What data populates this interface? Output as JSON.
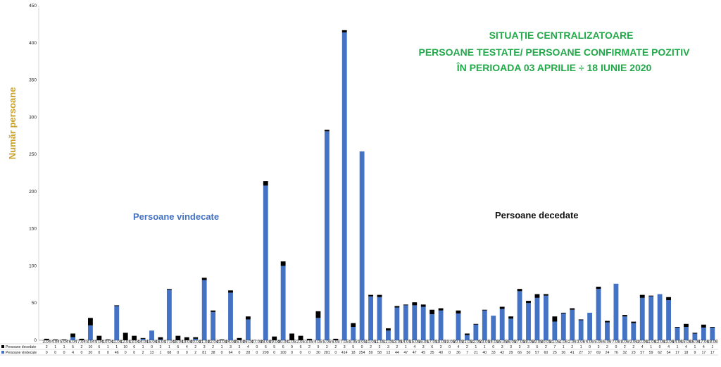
{
  "chart_data": {
    "type": "bar",
    "stacked": true,
    "title": [
      "SITUAȚIE CENTRALIZATOARE",
      "PERSOANE TESTATE/ PERSOANE CONFIRMATE POZITIV",
      "ÎN PERIOADA 03 APRILIE ÷ 18 IUNIE 2020"
    ],
    "ylabel": "Număr persoane",
    "xlabel": "",
    "ylim": [
      0,
      450
    ],
    "yticks": [
      "0",
      "50",
      "100",
      "150",
      "200",
      "250",
      "300",
      "350",
      "400",
      "450"
    ],
    "grid": false,
    "annotations": [
      {
        "text": "Persoane vindecate",
        "color": "#4472C4"
      },
      {
        "text": "Persoane decedate",
        "color": "#111111"
      }
    ],
    "colors": {
      "vindecate": "#4472C4",
      "decedate": "#000000"
    },
    "legend_table": {
      "row_labels": [
        "Persoane decedate",
        "Persoane vindecate"
      ]
    },
    "categories": [
      "3.04",
      "4.04",
      "5.04",
      "6.04",
      "7.04",
      "8.04",
      "9.04",
      "10.04",
      "11.04",
      "12.04",
      "13.04",
      "14.04",
      "15.04",
      "16.04",
      "17.04",
      "18.04",
      "19.04",
      "20.04",
      "21.04",
      "22.04",
      "23.04",
      "24.04",
      "25.04",
      "26.04",
      "27.04",
      "28.04",
      "29.04",
      "30.04",
      "1.05",
      "2.05",
      "3.05",
      "4.05",
      "5.05",
      "6.05",
      "7.05",
      "8.05",
      "9.05",
      "10.05",
      "11.05",
      "12.05",
      "13.05",
      "14.05",
      "15.05",
      "16.05",
      "17.05",
      "18.05",
      "19.05",
      "20.05",
      "21.05",
      "22.05",
      "23.05",
      "24.05",
      "25.05",
      "26.05",
      "27.05",
      "28.05",
      "29.05",
      "30.05",
      "31.05",
      "1.06",
      "2.06",
      "3.06",
      "4.06",
      "5.06",
      "6.06",
      "7.06",
      "8.06",
      "9.06",
      "10.06",
      "11.06",
      "12.06",
      "13.06",
      "14.06",
      "15.06",
      "16.06",
      "17.06",
      "18.06"
    ],
    "series": [
      {
        "name": "Persoane decedate",
        "values": [
          2,
          1,
          1,
          5,
          2,
          10,
          6,
          1,
          1,
          10,
          6,
          1,
          0,
          3,
          1,
          6,
          4,
          2,
          3,
          2,
          1,
          3,
          3,
          4,
          0,
          6,
          5,
          6,
          9,
          6,
          2,
          9,
          2,
          2,
          3,
          5,
          0,
          2,
          3,
          3,
          2,
          1,
          4,
          3,
          6,
          3,
          0,
          4,
          2,
          1,
          1,
          0,
          3,
          3,
          3,
          3,
          5,
          2,
          7,
          1,
          2,
          1,
          0,
          3,
          2,
          0,
          2,
          2,
          4,
          1,
          0,
          4,
          1,
          4,
          1,
          4,
          1
        ]
      },
      {
        "name": "Persoane vindecate",
        "values": [
          0,
          0,
          0,
          4,
          0,
          20,
          0,
          0,
          46,
          0,
          0,
          2,
          13,
          1,
          68,
          0,
          0,
          2,
          81,
          38,
          0,
          64,
          0,
          28,
          0,
          208,
          0,
          100,
          0,
          0,
          0,
          30,
          281,
          0,
          414,
          18,
          254,
          59,
          58,
          13,
          44,
          47,
          47,
          45,
          35,
          40,
          0,
          36,
          7,
          21,
          40,
          33,
          42,
          29,
          66,
          50,
          57,
          60,
          25,
          36,
          41,
          27,
          37,
          69,
          24,
          76,
          32,
          23,
          57,
          59,
          62,
          54,
          17,
          18,
          9,
          17,
          17
        ]
      }
    ]
  }
}
